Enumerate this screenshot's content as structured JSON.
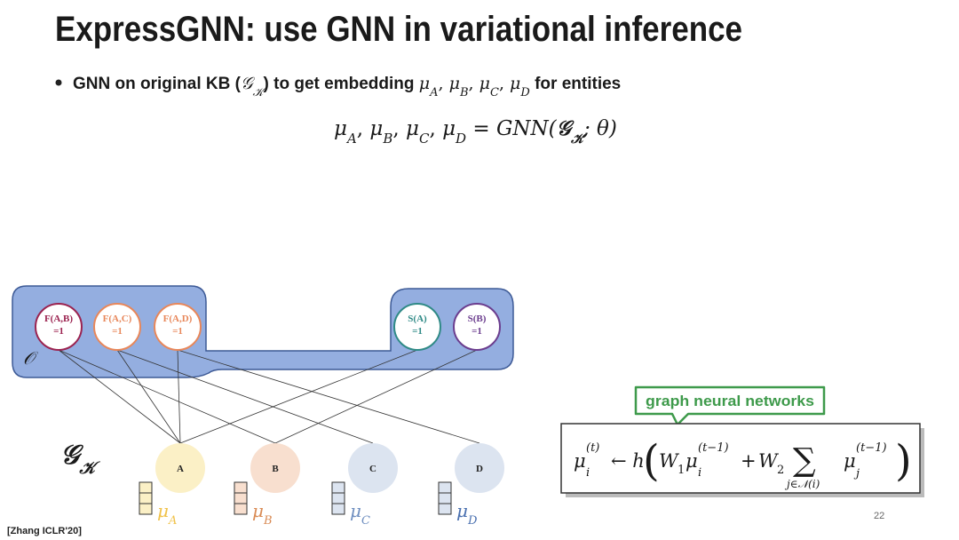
{
  "title": "ExpressGNN: use GNN in variational inference",
  "bullet": {
    "text1": "GNN on original KB (",
    "kb": "𝒢",
    "kb_sub": "𝒦",
    "text2": ") to get embedding ",
    "text3": " for entities"
  },
  "mu": "μ",
  "separator": ", ",
  "entities": [
    "A",
    "B",
    "C",
    "D"
  ],
  "equation": {
    "rhs1": " = GNN(",
    "rhs2": "; θ)"
  },
  "observed_label": "𝒪",
  "observed": [
    {
      "label": "F(A,B)",
      "value": "=1"
    },
    {
      "label": "F(A,C)",
      "value": "=1"
    },
    {
      "label": "F(A,D)",
      "value": "=1"
    },
    {
      "label": "S(A)",
      "value": "=1"
    },
    {
      "label": "S(B)",
      "value": "=1"
    }
  ],
  "callout": "graph neural networks",
  "formula": {
    "sub_i": "i",
    "sup_t": "(t)",
    "arrow": "← h",
    "open": "(",
    "w": "W",
    "w1_sub": "1",
    "sup_t1": "(t−1)",
    "plus": "+",
    "w2_sub": "2",
    "sum": "∑",
    "sum_sub": "j∈𝒩(i)",
    "sub_j": "j",
    "close": ")"
  },
  "citation": "[Zhang ICLR'20]",
  "page_number": "22"
}
